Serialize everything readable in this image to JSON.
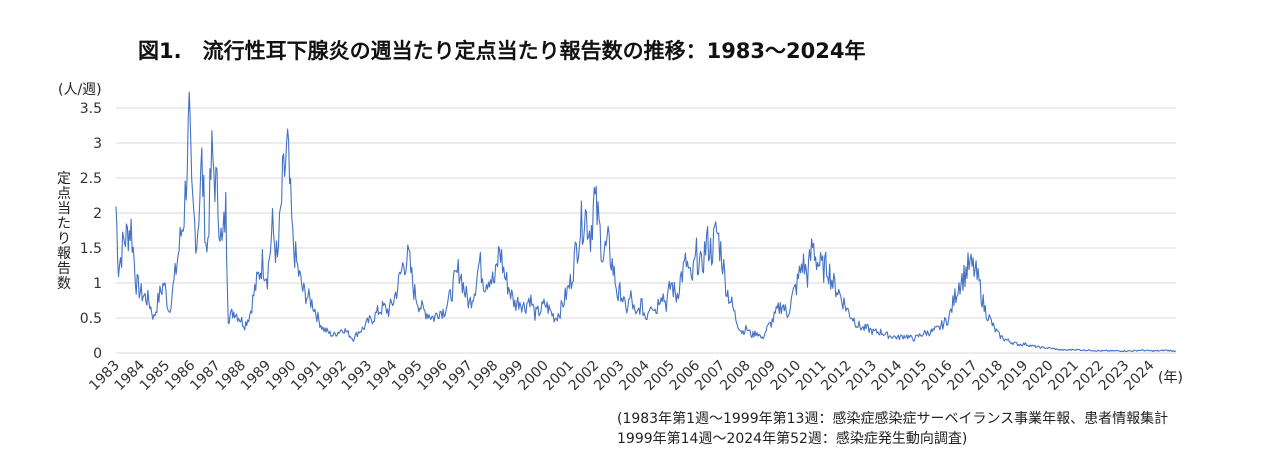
{
  "chart_data": {
    "type": "line",
    "title": "図1.　流行性耳下腺炎の週当たり定点当たり報告数の推移：1983〜2024年",
    "unit_label": "(人/週)",
    "ylabel": "定点当たり報告数",
    "xlabel": "(年)",
    "ylim": [
      0,
      3.5
    ],
    "yticks": [
      "0",
      "0.5",
      "1",
      "1.5",
      "2",
      "2.5",
      "3",
      "3.5"
    ],
    "grid": true,
    "x_start": 1983,
    "x_end": 2025,
    "years": [
      "1983",
      "1984",
      "1985",
      "1986",
      "1987",
      "1988",
      "1989",
      "1990",
      "1991",
      "1992",
      "1993",
      "1994",
      "1995",
      "1996",
      "1997",
      "1998",
      "1999",
      "2000",
      "2001",
      "2002",
      "2003",
      "2004",
      "2005",
      "2006",
      "2007",
      "2008",
      "2009",
      "2010",
      "2011",
      "2012",
      "2013",
      "2014",
      "2015",
      "2016",
      "2017",
      "2018",
      "2019",
      "2020",
      "2021",
      "2022",
      "2023",
      "2024"
    ],
    "series": [
      {
        "name": "",
        "color": "#4472c4",
        "points": [
          [
            1983.0,
            2.1
          ],
          [
            1983.1,
            1.2
          ],
          [
            1983.3,
            1.6
          ],
          [
            1983.6,
            1.8
          ],
          [
            1983.8,
            1.0
          ],
          [
            1984.0,
            0.85
          ],
          [
            1984.3,
            0.75
          ],
          [
            1984.5,
            0.5
          ],
          [
            1984.7,
            0.8
          ],
          [
            1984.9,
            1.0
          ],
          [
            1985.1,
            0.6
          ],
          [
            1985.3,
            1.0
          ],
          [
            1985.5,
            1.5
          ],
          [
            1985.7,
            2.0
          ],
          [
            1985.9,
            3.3
          ],
          [
            1986.0,
            2.2
          ],
          [
            1986.2,
            1.6
          ],
          [
            1986.4,
            2.7
          ],
          [
            1986.6,
            1.4
          ],
          [
            1986.8,
            2.8
          ],
          [
            1987.0,
            2.3
          ],
          [
            1987.2,
            1.5
          ],
          [
            1987.35,
            2.05
          ],
          [
            1987.45,
            0.5
          ],
          [
            1987.7,
            0.6
          ],
          [
            1987.9,
            0.5
          ],
          [
            1988.1,
            0.4
          ],
          [
            1988.3,
            0.55
          ],
          [
            1988.5,
            0.9
          ],
          [
            1988.8,
            1.3
          ],
          [
            1989.0,
            1.1
          ],
          [
            1989.2,
            1.8
          ],
          [
            1989.4,
            1.3
          ],
          [
            1989.6,
            2.4
          ],
          [
            1989.8,
            2.9
          ],
          [
            1990.0,
            1.6
          ],
          [
            1990.2,
            1.2
          ],
          [
            1990.4,
            0.9
          ],
          [
            1990.6,
            0.8
          ],
          [
            1990.8,
            0.7
          ],
          [
            1991.0,
            0.5
          ],
          [
            1991.2,
            0.35
          ],
          [
            1991.4,
            0.3
          ],
          [
            1991.6,
            0.25
          ],
          [
            1991.8,
            0.3
          ],
          [
            1992.0,
            0.35
          ],
          [
            1992.2,
            0.28
          ],
          [
            1992.4,
            0.2
          ],
          [
            1992.6,
            0.3
          ],
          [
            1992.8,
            0.35
          ],
          [
            1993.0,
            0.45
          ],
          [
            1993.2,
            0.5
          ],
          [
            1993.4,
            0.6
          ],
          [
            1993.6,
            0.65
          ],
          [
            1993.8,
            0.6
          ],
          [
            1994.0,
            0.75
          ],
          [
            1994.2,
            1.0
          ],
          [
            1994.4,
            1.3
          ],
          [
            1994.6,
            1.35
          ],
          [
            1994.8,
            0.9
          ],
          [
            1995.0,
            0.7
          ],
          [
            1995.2,
            0.6
          ],
          [
            1995.4,
            0.55
          ],
          [
            1995.6,
            0.5
          ],
          [
            1995.8,
            0.6
          ],
          [
            1996.0,
            0.6
          ],
          [
            1996.2,
            0.75
          ],
          [
            1996.4,
            1.0
          ],
          [
            1996.6,
            1.2
          ],
          [
            1996.8,
            0.9
          ],
          [
            1997.0,
            0.7
          ],
          [
            1997.2,
            0.9
          ],
          [
            1997.4,
            1.3
          ],
          [
            1997.6,
            1.0
          ],
          [
            1997.8,
            1.1
          ],
          [
            1998.0,
            1.0
          ],
          [
            1998.2,
            1.5
          ],
          [
            1998.4,
            1.1
          ],
          [
            1998.6,
            0.9
          ],
          [
            1998.8,
            0.7
          ],
          [
            1999.0,
            0.75
          ],
          [
            1999.2,
            0.65
          ],
          [
            1999.4,
            0.8
          ],
          [
            1999.6,
            0.55
          ],
          [
            1999.8,
            0.6
          ],
          [
            2000.0,
            0.7
          ],
          [
            2000.2,
            0.6
          ],
          [
            2000.4,
            0.5
          ],
          [
            2000.6,
            0.6
          ],
          [
            2000.8,
            0.8
          ],
          [
            2001.0,
            1.0
          ],
          [
            2001.2,
            1.4
          ],
          [
            2001.4,
            1.8
          ],
          [
            2001.6,
            2.0
          ],
          [
            2001.8,
            1.7
          ],
          [
            2001.95,
            2.2
          ],
          [
            2002.1,
            1.9
          ],
          [
            2002.3,
            1.4
          ],
          [
            2002.5,
            1.55
          ],
          [
            2002.7,
            1.2
          ],
          [
            2002.9,
            0.8
          ],
          [
            2003.0,
            0.9
          ],
          [
            2003.2,
            0.6
          ],
          [
            2003.4,
            0.8
          ],
          [
            2003.6,
            0.5
          ],
          [
            2003.8,
            0.7
          ],
          [
            2004.0,
            0.5
          ],
          [
            2004.2,
            0.75
          ],
          [
            2004.4,
            0.6
          ],
          [
            2004.6,
            0.9
          ],
          [
            2004.8,
            0.7
          ],
          [
            2005.0,
            1.0
          ],
          [
            2005.2,
            0.8
          ],
          [
            2005.4,
            1.1
          ],
          [
            2005.6,
            1.3
          ],
          [
            2005.8,
            1.0
          ],
          [
            2006.0,
            1.4
          ],
          [
            2006.2,
            1.2
          ],
          [
            2006.4,
            1.6
          ],
          [
            2006.6,
            1.45
          ],
          [
            2006.8,
            1.75
          ],
          [
            2007.0,
            1.4
          ],
          [
            2007.2,
            0.9
          ],
          [
            2007.4,
            0.7
          ],
          [
            2007.6,
            0.45
          ],
          [
            2007.8,
            0.3
          ],
          [
            2008.0,
            0.35
          ],
          [
            2008.2,
            0.25
          ],
          [
            2008.4,
            0.3
          ],
          [
            2008.6,
            0.2
          ],
          [
            2008.8,
            0.35
          ],
          [
            2009.0,
            0.45
          ],
          [
            2009.2,
            0.6
          ],
          [
            2009.4,
            0.7
          ],
          [
            2009.6,
            0.55
          ],
          [
            2009.8,
            0.8
          ],
          [
            2010.0,
            1.0
          ],
          [
            2010.2,
            1.3
          ],
          [
            2010.4,
            1.1
          ],
          [
            2010.6,
            1.55
          ],
          [
            2010.8,
            1.3
          ],
          [
            2011.0,
            1.2
          ],
          [
            2011.2,
            1.25
          ],
          [
            2011.4,
            1.0
          ],
          [
            2011.6,
            0.9
          ],
          [
            2011.8,
            0.75
          ],
          [
            2012.0,
            0.6
          ],
          [
            2012.2,
            0.5
          ],
          [
            2012.4,
            0.4
          ],
          [
            2012.6,
            0.35
          ],
          [
            2012.8,
            0.35
          ],
          [
            2013.0,
            0.3
          ],
          [
            2013.3,
            0.3
          ],
          [
            2013.6,
            0.25
          ],
          [
            2014.0,
            0.22
          ],
          [
            2014.3,
            0.25
          ],
          [
            2014.6,
            0.2
          ],
          [
            2015.0,
            0.28
          ],
          [
            2015.3,
            0.3
          ],
          [
            2015.6,
            0.35
          ],
          [
            2016.0,
            0.5
          ],
          [
            2016.2,
            0.75
          ],
          [
            2016.4,
            1.0
          ],
          [
            2016.6,
            1.1
          ],
          [
            2016.8,
            1.25
          ],
          [
            2017.0,
            1.2
          ],
          [
            2017.2,
            1.0
          ],
          [
            2017.4,
            0.65
          ],
          [
            2017.6,
            0.5
          ],
          [
            2017.8,
            0.35
          ],
          [
            2018.0,
            0.25
          ],
          [
            2018.2,
            0.2
          ],
          [
            2018.5,
            0.15
          ],
          [
            2018.8,
            0.12
          ],
          [
            2019.0,
            0.13
          ],
          [
            2019.3,
            0.1
          ],
          [
            2019.6,
            0.08
          ],
          [
            2020.0,
            0.07
          ],
          [
            2020.3,
            0.05
          ],
          [
            2020.6,
            0.04
          ],
          [
            2021.0,
            0.05
          ],
          [
            2021.3,
            0.04
          ],
          [
            2021.6,
            0.04
          ],
          [
            2022.0,
            0.03
          ],
          [
            2022.3,
            0.03
          ],
          [
            2022.6,
            0.03
          ],
          [
            2023.0,
            0.03
          ],
          [
            2023.3,
            0.03
          ],
          [
            2023.6,
            0.04
          ],
          [
            2024.0,
            0.03
          ],
          [
            2024.3,
            0.03
          ],
          [
            2024.6,
            0.04
          ],
          [
            2024.85,
            0.03
          ],
          [
            2025.0,
            0.03
          ]
        ]
      }
    ],
    "notes": [
      "(1983年第1週〜1999年第13週：感染症感染症サーベイランス事業年報、患者情報集計",
      "1999年第14週〜2024年第52週：感染症発生動向調査)"
    ]
  }
}
